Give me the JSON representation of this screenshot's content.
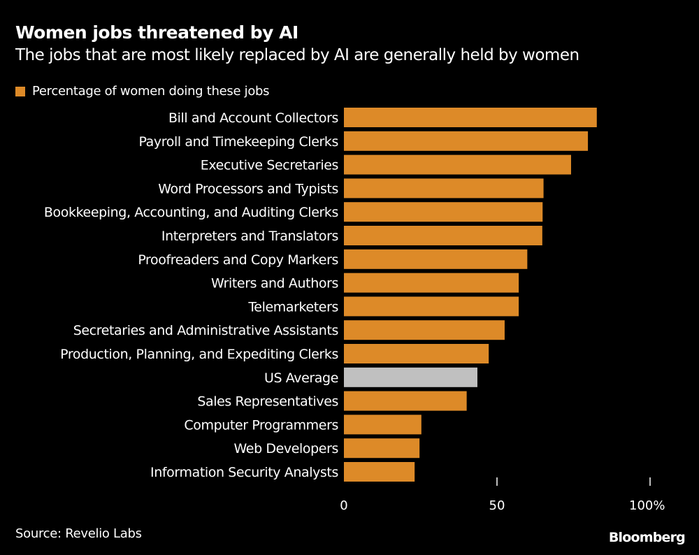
{
  "chart_data": {
    "type": "bar",
    "orientation": "horizontal",
    "title": "Women jobs threatened by AI",
    "subtitle": "The jobs that are most likely replaced by AI are generally held by women",
    "categories": [
      "Bill and Account Collectors",
      "Payroll and Timekeeping Clerks",
      "Executive Secretaries",
      "Word Processors and Typists",
      "Bookkeeping, Accounting, and Auditing Clerks",
      "Interpreters and Translators",
      "Proofreaders and Copy Markers",
      "Writers and Authors",
      "Telemarketers",
      "Secretaries and Administrative Assistants",
      "Production, Planning, and Expediting Clerks",
      "US Average",
      "Sales Representatives",
      "Computer Programmers",
      "Web Developers",
      "Information Security Analysts"
    ],
    "series": [
      {
        "name": "Percentage of women doing these jobs",
        "values": [
          82.6,
          79.7,
          74.2,
          65.2,
          64.9,
          64.8,
          59.9,
          57.1,
          57.1,
          52.5,
          47.3,
          43.6,
          40.1,
          25.3,
          24.7,
          23.1
        ]
      }
    ],
    "highlight_category": "US Average",
    "xlim": [
      0,
      100
    ],
    "xticks": [
      0,
      50,
      100
    ],
    "xtick_labels": [
      "0",
      "50",
      "100%"
    ],
    "grid": false,
    "legend_position": "top-left",
    "colors": {
      "bar": "#dd8a28",
      "highlight": "#c0c0c0",
      "background": "#000000"
    }
  },
  "source": "Source: Revelio Labs",
  "logo": "Bloomberg"
}
